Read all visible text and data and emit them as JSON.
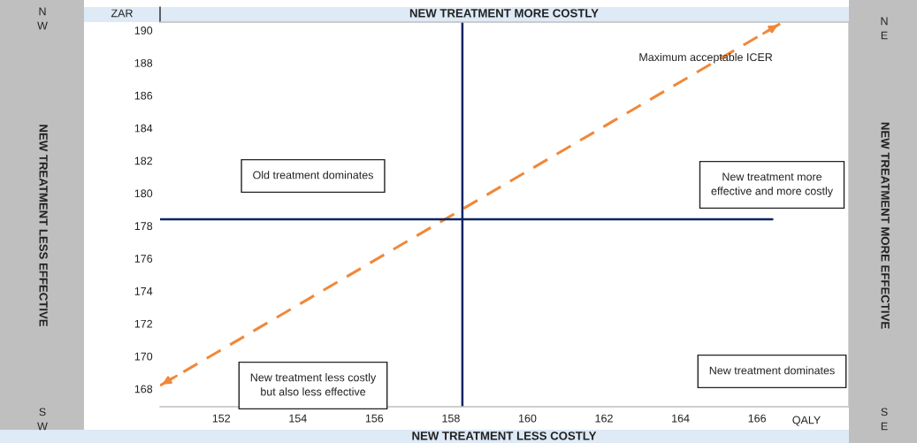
{
  "chart_data": {
    "type": "line",
    "xlabel": "QALY",
    "ylabel": "ZAR",
    "xlim": [
      150.4,
      168.4
    ],
    "ylim": [
      166.9,
      190.5
    ],
    "xticks": [
      152,
      154,
      156,
      158,
      160,
      162,
      164,
      166
    ],
    "yticks": [
      168,
      170,
      172,
      174,
      176,
      178,
      180,
      182,
      184,
      186,
      188,
      190
    ],
    "grid": false,
    "legend": false,
    "series": [
      {
        "name": "Maximum acceptable ICER",
        "color": "#f0883a",
        "line_style": "dashed",
        "x": [
          150.4,
          166.6
        ],
        "values": [
          168.2,
          190.4
        ]
      },
      {
        "color": "#0a2463",
        "line_style": "solid",
        "x": [
          150.4,
          166.4
        ],
        "values": [
          178.4,
          178.4
        ]
      }
    ],
    "ref_lines": [
      {
        "axis": "x",
        "value": 158.3,
        "color": "#0a2463"
      }
    ],
    "annotations": [
      "N\nW",
      "NEW TREATMENT LESS EFFECTIVE",
      "S\nW",
      "N\nE",
      "NEW TREATMENT MORE EFFECTIVE",
      "S\nE",
      "NEW TREATMENT MORE COSTLY",
      "NEW TREATMENT LESS COSTLY",
      "Old treatment dominates",
      "New treatment more\neffective and more costly",
      "New treatment less costly\nbut also less effective",
      "New treatment dominates"
    ]
  }
}
